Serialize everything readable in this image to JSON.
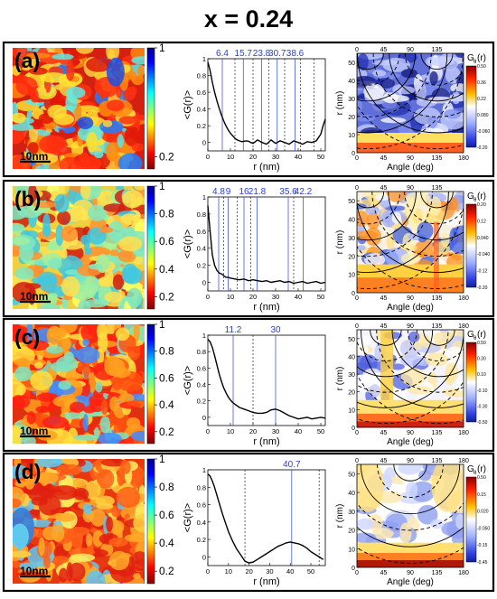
{
  "title": "x = 0.24",
  "scale_bar_label": "10nm",
  "colorbar_ticks": [
    "1",
    "0.8",
    "0.6",
    "0.4",
    "0.2"
  ],
  "panel_a_colorbar_ticks": [
    "1",
    "0.2"
  ],
  "gr_ylabel": "<G(r)>",
  "gr_xlabel": "r (nm)",
  "polar_ylabel": "r (nm)",
  "polar_xlabel": "Angle (deg)",
  "polar_cb_title": "G",
  "polar_cb_sub": "θ",
  "polar_cb_suffix": "(r)",
  "colors": {
    "blue_line": "#2a3fd8",
    "frame": "#000000"
  },
  "panels": [
    {
      "label": "(a)",
      "theme": "a",
      "gr": {
        "ylim": [
          -0.1,
          1.0
        ],
        "xlim": [
          0,
          52
        ],
        "yticks": [
          0,
          0.2,
          0.4,
          0.6,
          0.8,
          1
        ],
        "xticks": [
          0,
          10,
          20,
          30,
          40,
          50
        ],
        "peak_labels": [
          "6.4",
          "15.7",
          "23.8",
          "30.7",
          "38.6"
        ],
        "peak_positions": [
          6.4,
          15.7,
          23.8,
          30.7,
          38.6
        ],
        "dashed_lines": [
          12,
          20,
          27,
          34,
          41,
          47
        ],
        "curve_x": [
          0,
          1,
          2,
          3,
          4,
          5,
          6,
          7,
          8,
          9,
          10,
          11,
          12,
          13,
          14,
          15,
          16,
          17,
          18,
          19,
          20,
          22,
          24,
          26,
          28,
          30,
          32,
          34,
          36,
          38,
          40,
          42,
          44,
          46,
          48,
          50,
          51,
          52
        ],
        "curve_y": [
          0.96,
          0.86,
          0.72,
          0.6,
          0.5,
          0.41,
          0.33,
          0.26,
          0.2,
          0.15,
          0.11,
          0.08,
          0.05,
          0.03,
          0.02,
          0.01,
          0.015,
          0.02,
          0.015,
          0.0,
          -0.01,
          0.03,
          0.0,
          -0.02,
          0.03,
          -0.01,
          0.02,
          0.0,
          -0.02,
          0.02,
          0.0,
          -0.02,
          0.01,
          0.0,
          0.02,
          0.1,
          0.2,
          0.28
        ]
      },
      "polar": {
        "yticks": [
          "0",
          "10",
          "20",
          "30",
          "40",
          "50"
        ],
        "xticks": [
          "0",
          "45",
          "90",
          "135",
          "180"
        ],
        "top_ticks": [
          "0",
          "45",
          "90",
          "135"
        ],
        "cb_ticks": [
          "0.50",
          "0.36",
          "0.22",
          "0.080",
          "-0.060",
          "-0.20"
        ]
      }
    },
    {
      "label": "(b)",
      "theme": "b",
      "gr": {
        "ylim": [
          -0.1,
          1.0
        ],
        "xlim": [
          0,
          52
        ],
        "yticks": [
          0,
          0.2,
          0.4,
          0.6,
          0.8,
          1
        ],
        "xticks": [
          0,
          10,
          20,
          30,
          40,
          50
        ],
        "peak_labels": [
          "4.8",
          "9",
          "16",
          "21.8",
          "35.6",
          "42.2"
        ],
        "peak_positions": [
          4.8,
          9,
          16,
          21.8,
          35.6,
          42.2
        ],
        "dashed_lines": [
          7,
          13,
          19,
          38
        ],
        "curve_x": [
          0,
          1,
          2,
          3,
          4,
          5,
          6,
          7,
          8,
          9,
          10,
          12,
          14,
          16,
          18,
          20,
          22,
          24,
          26,
          28,
          30,
          32,
          34,
          36,
          38,
          40,
          42,
          44,
          46,
          48,
          50,
          52
        ],
        "curve_y": [
          0.9,
          0.6,
          0.32,
          0.2,
          0.14,
          0.11,
          0.1,
          0.08,
          0.06,
          0.06,
          0.05,
          0.04,
          0.03,
          0.04,
          0.02,
          0.03,
          0.02,
          0.01,
          0.02,
          0.0,
          0.01,
          0.02,
          0.0,
          0.01,
          -0.01,
          0.0,
          0.01,
          -0.01,
          0.0,
          0.01,
          -0.01,
          0.0
        ]
      },
      "polar": {
        "yticks": [
          "0",
          "10",
          "20",
          "30",
          "40",
          "50"
        ],
        "xticks": [
          "0",
          "45",
          "90",
          "135",
          "180"
        ],
        "top_ticks": [
          "0",
          "45",
          "90",
          "135"
        ],
        "cb_ticks": [
          "0.20",
          "0.12",
          "0.040",
          "-0.040",
          "-0.12",
          "-0.20"
        ]
      }
    },
    {
      "label": "(c)",
      "theme": "c",
      "gr": {
        "ylim": [
          -0.1,
          1.0
        ],
        "xlim": [
          0,
          52
        ],
        "yticks": [
          0,
          0.2,
          0.4,
          0.6,
          0.8,
          1
        ],
        "xticks": [
          0,
          10,
          20,
          30,
          40,
          50
        ],
        "peak_labels": [
          "11.2",
          "30"
        ],
        "peak_positions": [
          11.2,
          30
        ],
        "dashed_lines": [
          20
        ],
        "curve_x": [
          0,
          1,
          2,
          3,
          4,
          5,
          6,
          7,
          8,
          9,
          10,
          11,
          12,
          14,
          16,
          18,
          20,
          22,
          24,
          26,
          28,
          30,
          32,
          34,
          36,
          38,
          40,
          42,
          44,
          46,
          48,
          50,
          52
        ],
        "curve_y": [
          0.95,
          0.92,
          0.85,
          0.75,
          0.64,
          0.53,
          0.44,
          0.36,
          0.3,
          0.25,
          0.21,
          0.18,
          0.16,
          0.12,
          0.1,
          0.08,
          0.06,
          0.05,
          0.05,
          0.06,
          0.09,
          0.1,
          0.08,
          0.05,
          0.02,
          0.0,
          -0.02,
          -0.01,
          0.0,
          -0.02,
          -0.01,
          0.0,
          -0.01
        ]
      },
      "polar": {
        "yticks": [
          "0",
          "10",
          "20",
          "30",
          "40",
          "50"
        ],
        "xticks": [
          "0",
          "45",
          "90",
          "135",
          "180"
        ],
        "top_ticks": [
          "0",
          "45",
          "90",
          "135",
          "180"
        ],
        "cb_ticks": [
          "0.50",
          "0.30",
          "0.10",
          "-0.10",
          "-0.30",
          "-0.50"
        ]
      }
    },
    {
      "label": "(d)",
      "theme": "d",
      "gr": {
        "ylim": [
          -0.1,
          1.0
        ],
        "xlim": [
          0,
          57
        ],
        "yticks": [
          0,
          0.2,
          0.4,
          0.6,
          0.8,
          1
        ],
        "xticks": [
          0,
          10,
          20,
          30,
          40,
          50
        ],
        "peak_labels": [
          "40.7"
        ],
        "peak_positions": [
          40.7
        ],
        "dashed_lines": [
          18,
          54
        ],
        "curve_x": [
          0,
          1,
          2,
          3,
          4,
          5,
          6,
          7,
          8,
          9,
          10,
          12,
          14,
          16,
          18,
          20,
          22,
          24,
          26,
          28,
          30,
          32,
          34,
          36,
          38,
          40,
          42,
          44,
          46,
          48,
          50,
          52,
          54,
          56
        ],
        "curve_y": [
          0.95,
          0.93,
          0.88,
          0.82,
          0.74,
          0.66,
          0.58,
          0.5,
          0.43,
          0.36,
          0.29,
          0.18,
          0.09,
          0.02,
          -0.05,
          -0.07,
          -0.06,
          -0.03,
          0.0,
          0.03,
          0.06,
          0.09,
          0.12,
          0.14,
          0.16,
          0.17,
          0.16,
          0.15,
          0.13,
          0.1,
          0.06,
          0.03,
          0.0,
          -0.03
        ]
      },
      "polar": {
        "yticks": [
          "0",
          "10",
          "20",
          "30",
          "40",
          "50"
        ],
        "xticks": [
          "0",
          "45",
          "90",
          "135",
          "180"
        ],
        "top_ticks": [
          "0",
          "45",
          "90",
          "135",
          "180"
        ],
        "cb_ticks": [
          "0.50",
          "0.15",
          "0.020",
          "-0.050",
          "-0.15",
          "-0.45"
        ]
      }
    }
  ]
}
